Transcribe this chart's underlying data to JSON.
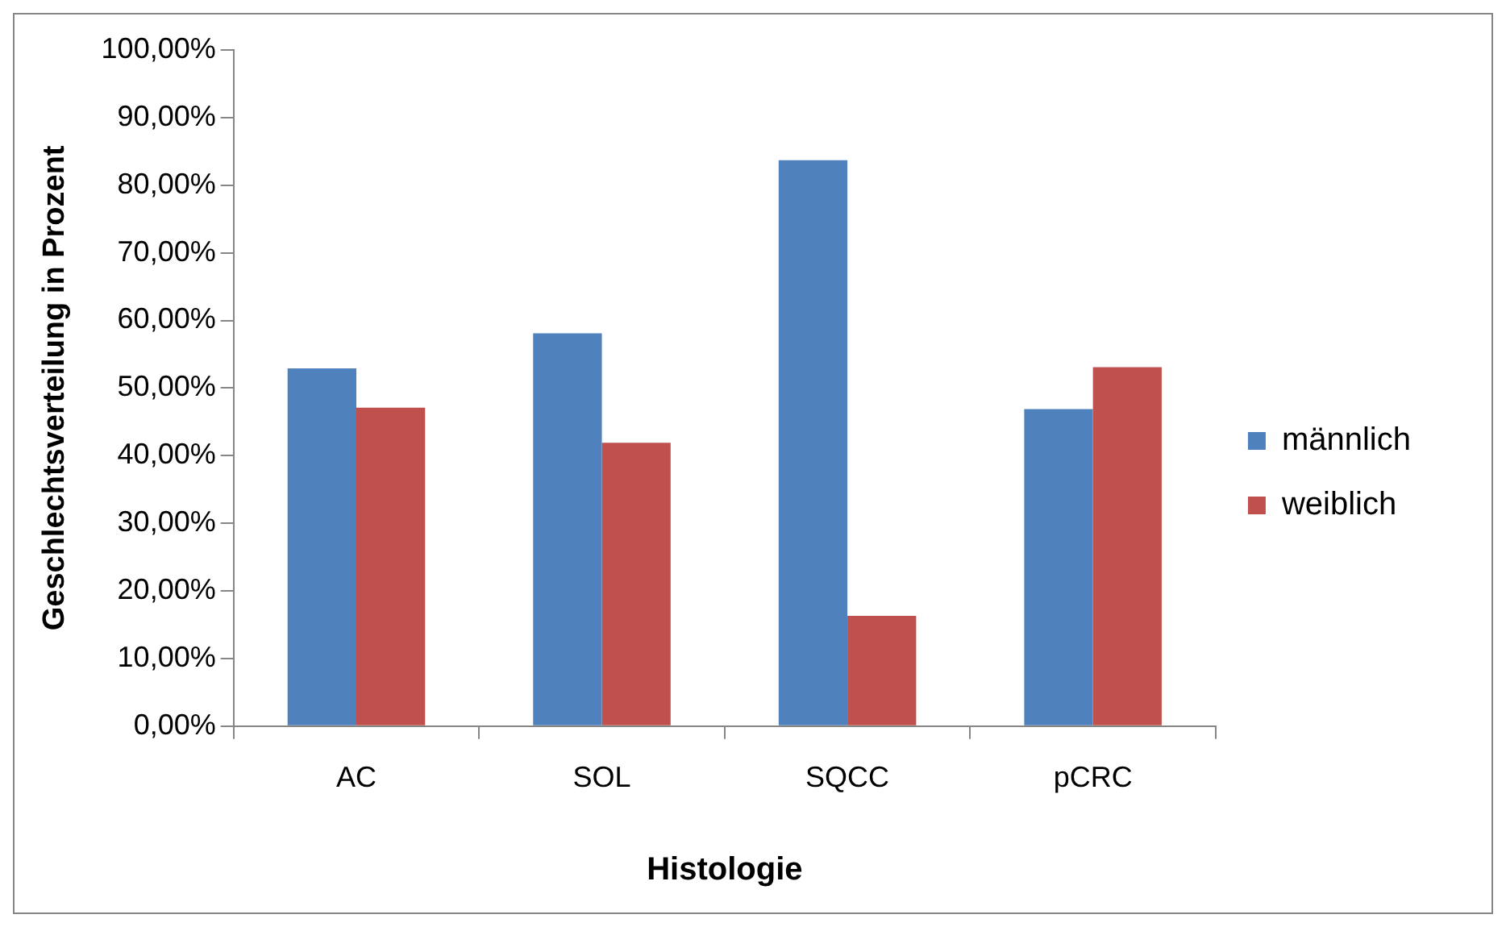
{
  "chart_data": {
    "type": "bar",
    "xlabel": "Histologie",
    "ylabel": "Geschlechtsverteilung in Prozent",
    "categories": [
      "AC",
      "SOL",
      "SQCC",
      "pCRC"
    ],
    "series": [
      {
        "name": "männlich",
        "color": "#4f81bd",
        "values": [
          52.9,
          58.1,
          83.7,
          46.9
        ]
      },
      {
        "name": "weiblich",
        "color": "#c0504d",
        "values": [
          47.1,
          41.9,
          16.3,
          53.1
        ]
      }
    ],
    "ylim": [
      0,
      100
    ],
    "yticks": [
      {
        "value": 0,
        "label": "0,00%"
      },
      {
        "value": 10,
        "label": "10,00%"
      },
      {
        "value": 20,
        "label": "20,00%"
      },
      {
        "value": 30,
        "label": "30,00%"
      },
      {
        "value": 40,
        "label": "40,00%"
      },
      {
        "value": 50,
        "label": "50,00%"
      },
      {
        "value": 60,
        "label": "60,00%"
      },
      {
        "value": 70,
        "label": "70,00%"
      },
      {
        "value": 80,
        "label": "80,00%"
      },
      {
        "value": 90,
        "label": "90,00%"
      },
      {
        "value": 100,
        "label": "100,00%"
      }
    ],
    "grid": false,
    "legend": "right"
  }
}
